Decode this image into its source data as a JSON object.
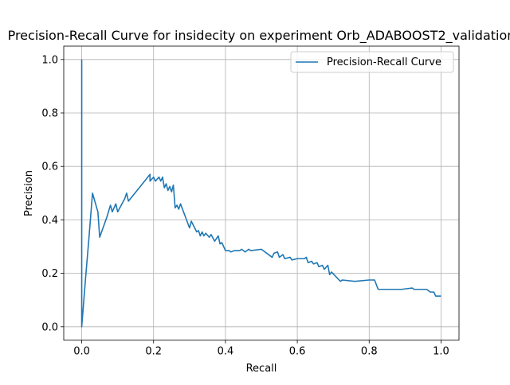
{
  "chart_data": {
    "type": "line",
    "title": "Precision-Recall Curve for insidecity on experiment Orb_ADABOOST2_validation",
    "xlabel": "Recall",
    "ylabel": "Precision",
    "xlim": [
      -0.05,
      1.05
    ],
    "ylim": [
      -0.05,
      1.05
    ],
    "xticks": [
      0.0,
      0.2,
      0.4,
      0.6,
      0.8,
      1.0
    ],
    "xtick_labels": [
      "0.0",
      "0.2",
      "0.4",
      "0.6",
      "0.8",
      "1.0"
    ],
    "yticks": [
      0.0,
      0.2,
      0.4,
      0.6,
      0.8,
      1.0
    ],
    "ytick_labels": [
      "0.0",
      "0.2",
      "0.4",
      "0.6",
      "0.8",
      "1.0"
    ],
    "grid": true,
    "legend": {
      "placement": "top-right",
      "entries": [
        "Precision-Recall Curve"
      ]
    },
    "series": [
      {
        "name": "Precision-Recall Curve",
        "color": "#1f77b4",
        "x": [
          0.0,
          0.0,
          0.0,
          0.01,
          0.02,
          0.03,
          0.045,
          0.05,
          0.07,
          0.08,
          0.085,
          0.095,
          0.1,
          0.12,
          0.125,
          0.13,
          0.16,
          0.19,
          0.19,
          0.2,
          0.205,
          0.215,
          0.22,
          0.225,
          0.23,
          0.235,
          0.24,
          0.245,
          0.25,
          0.255,
          0.26,
          0.265,
          0.27,
          0.275,
          0.3,
          0.305,
          0.32,
          0.325,
          0.33,
          0.335,
          0.34,
          0.345,
          0.355,
          0.36,
          0.37,
          0.38,
          0.385,
          0.39,
          0.4,
          0.41,
          0.415,
          0.425,
          0.44,
          0.445,
          0.455,
          0.46,
          0.465,
          0.47,
          0.5,
          0.53,
          0.535,
          0.545,
          0.55,
          0.56,
          0.565,
          0.58,
          0.585,
          0.6,
          0.62,
          0.625,
          0.63,
          0.64,
          0.645,
          0.655,
          0.66,
          0.67,
          0.675,
          0.685,
          0.69,
          0.695,
          0.72,
          0.725,
          0.76,
          0.8,
          0.815,
          0.825,
          0.83,
          0.84,
          0.85,
          0.86,
          0.87,
          0.88,
          0.89,
          0.92,
          0.925,
          0.94,
          0.955,
          0.96,
          0.97,
          0.98,
          0.985,
          1.0
        ],
        "y": [
          1.0,
          0.0,
          0.0,
          0.17,
          0.33,
          0.5,
          0.43,
          0.335,
          0.41,
          0.455,
          0.43,
          0.46,
          0.43,
          0.48,
          0.5,
          0.47,
          0.52,
          0.57,
          0.545,
          0.56,
          0.545,
          0.56,
          0.545,
          0.56,
          0.52,
          0.535,
          0.51,
          0.525,
          0.505,
          0.53,
          0.445,
          0.455,
          0.44,
          0.46,
          0.37,
          0.395,
          0.355,
          0.36,
          0.34,
          0.355,
          0.34,
          0.35,
          0.335,
          0.345,
          0.32,
          0.34,
          0.31,
          0.315,
          0.285,
          0.285,
          0.28,
          0.285,
          0.285,
          0.29,
          0.28,
          0.285,
          0.29,
          0.285,
          0.29,
          0.26,
          0.275,
          0.28,
          0.26,
          0.27,
          0.255,
          0.26,
          0.25,
          0.255,
          0.255,
          0.26,
          0.24,
          0.245,
          0.235,
          0.24,
          0.225,
          0.23,
          0.215,
          0.23,
          0.195,
          0.205,
          0.17,
          0.175,
          0.17,
          0.175,
          0.175,
          0.14,
          0.14,
          0.14,
          0.14,
          0.14,
          0.14,
          0.14,
          0.14,
          0.145,
          0.14,
          0.14,
          0.14,
          0.14,
          0.13,
          0.13,
          0.115,
          0.115
        ]
      }
    ]
  }
}
